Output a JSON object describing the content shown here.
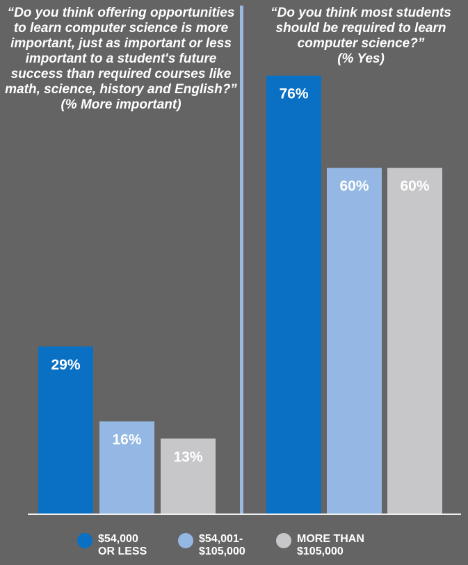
{
  "questions": {
    "left": {
      "text": "“Do you think offering opportunities to learn computer science is more important, just as important or less important to a student's future success than required courses like math, science, history and English?”",
      "measure": "(% More important)"
    },
    "right": {
      "text": "“Do you think most students should be required to learn computer science?”",
      "measure": "(% Yes)"
    }
  },
  "legend": [
    {
      "label": "$54,000\nOR LESS",
      "color": "#0a70c4"
    },
    {
      "label": "$54,001-\n$105,000",
      "color": "#94b8e3"
    },
    {
      "label": "MORE THAN\n$105,000",
      "color": "#c7c7c9"
    }
  ],
  "chart_data": [
    {
      "type": "bar",
      "categories": [
        "$54,000 OR LESS",
        "$54,001-$105,000",
        "MORE THAN $105,000"
      ],
      "values": [
        29,
        16,
        13
      ],
      "value_labels": [
        "29%",
        "16%",
        "13%"
      ],
      "ylim": [
        0,
        100
      ],
      "title": "“Do you think offering opportunities to learn computer science is more important, just as important or less important to a student's future success than required courses like math, science, history and English?”",
      "subtitle": "(% More important)"
    },
    {
      "type": "bar",
      "categories": [
        "$54,000 OR LESS",
        "$54,001-$105,000",
        "MORE THAN $105,000"
      ],
      "values": [
        76,
        60,
        60
      ],
      "value_labels": [
        "76%",
        "60%",
        "60%"
      ],
      "ylim": [
        0,
        100
      ],
      "title": "“Do you think most students should be required to learn computer science?”",
      "subtitle": "(% Yes)"
    }
  ]
}
